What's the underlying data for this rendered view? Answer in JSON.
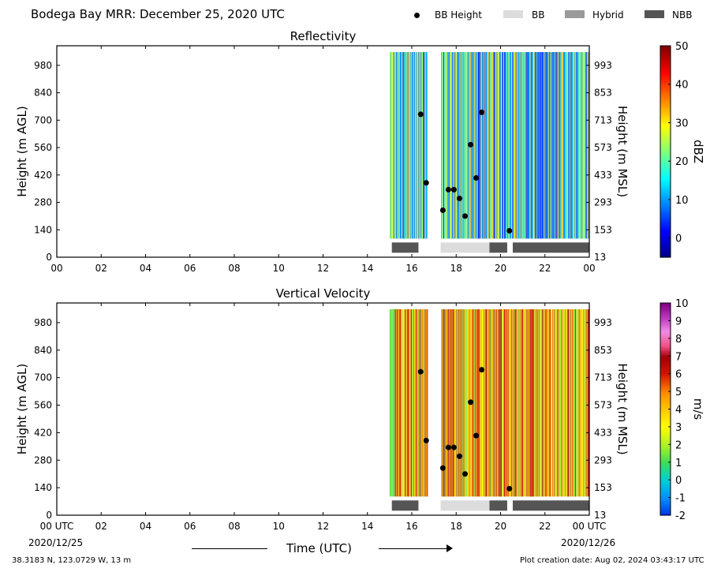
{
  "header": {
    "title": "Bodega Bay MRR:  December 25, 2020 UTC"
  },
  "legend": {
    "bb_height": "BB Height",
    "bb": "BB",
    "hybrid": "Hybrid",
    "nbb": "NBB",
    "colors": {
      "bb": "#dcdcdc",
      "hybrid": "#9a9a9a",
      "nbb": "#555555",
      "bb_height": "#000000"
    }
  },
  "footer": {
    "location": "38.3183 N, 123.0729 W, 13 m",
    "created": "Plot creation date: Aug 02, 2024 03:43:17 UTC",
    "date_start": "2020/12/25",
    "date_end": "2020/12/26",
    "xaxis_title": "Time (UTC)"
  },
  "chart_data": [
    {
      "type": "heatmap",
      "title": "Reflectivity",
      "ylabel": "Height (m AGL)",
      "ylabel_right": "Height (m MSL)",
      "colorbar_label": "dBZ",
      "colorbar_ticks": [
        "50",
        "40",
        "30",
        "20",
        "10",
        "0"
      ],
      "colorbar_range": [
        -5,
        50
      ],
      "x_ticks": [
        "00",
        "02",
        "04",
        "06",
        "08",
        "10",
        "12",
        "14",
        "16",
        "18",
        "20",
        "22",
        "00"
      ],
      "x_range_hours": [
        0,
        24
      ],
      "y_ticks": [
        "0",
        "140",
        "280",
        "420",
        "560",
        "700",
        "840",
        "980"
      ],
      "y_ticks_right": [
        "13",
        "153",
        "293",
        "433",
        "573",
        "713",
        "853",
        "993"
      ],
      "y_range_m_agl": [
        0,
        1080
      ],
      "data_start_hour": 15.0,
      "data_end_hour": 24.0,
      "data_gap_hours": [
        [
          16.7,
          17.3
        ]
      ],
      "bb_height_points": [
        {
          "hour": 16.4,
          "height_m_agl": 730
        },
        {
          "hour": 16.65,
          "height_m_agl": 380
        },
        {
          "hour": 17.4,
          "height_m_agl": 240
        },
        {
          "hour": 17.65,
          "height_m_agl": 345
        },
        {
          "hour": 17.9,
          "height_m_agl": 345
        },
        {
          "hour": 18.15,
          "height_m_agl": 300
        },
        {
          "hour": 18.4,
          "height_m_agl": 210
        },
        {
          "hour": 18.65,
          "height_m_agl": 575
        },
        {
          "hour": 18.9,
          "height_m_agl": 405
        },
        {
          "hour": 19.15,
          "height_m_agl": 740
        },
        {
          "hour": 20.4,
          "height_m_agl": 135
        }
      ],
      "classification_bars": [
        {
          "class": "NBB",
          "start_hour": 15.1,
          "end_hour": 16.3
        },
        {
          "class": "BB",
          "start_hour": 17.3,
          "end_hour": 19.5
        },
        {
          "class": "NBB",
          "start_hour": 19.5,
          "end_hour": 20.3
        },
        {
          "class": "NBB",
          "start_hour": 20.55,
          "end_hour": 24.0
        }
      ]
    },
    {
      "type": "heatmap",
      "title": "Vertical Velocity",
      "ylabel": "Height (m AGL)",
      "ylabel_right": "Height (m MSL)",
      "colorbar_label": "m/s",
      "colorbar_ticks": [
        "10",
        "9",
        "8",
        "7",
        "6",
        "5",
        "4",
        "3",
        "2",
        "1",
        "0",
        "-1",
        "-2"
      ],
      "colorbar_range": [
        -2,
        10
      ],
      "x_ticks": [
        "00 UTC",
        "02",
        "04",
        "06",
        "08",
        "10",
        "12",
        "14",
        "16",
        "18",
        "20",
        "22",
        "00 UTC"
      ],
      "x_range_hours": [
        0,
        24
      ],
      "y_ticks": [
        "0",
        "140",
        "280",
        "420",
        "560",
        "700",
        "840",
        "980"
      ],
      "y_ticks_right": [
        "13",
        "153",
        "293",
        "433",
        "573",
        "713",
        "853",
        "993"
      ],
      "y_range_m_agl": [
        0,
        1080
      ],
      "data_start_hour": 15.0,
      "data_end_hour": 24.0,
      "data_gap_hours": [
        [
          16.7,
          17.3
        ]
      ],
      "bb_height_points": [
        {
          "hour": 16.4,
          "height_m_agl": 730
        },
        {
          "hour": 16.65,
          "height_m_agl": 380
        },
        {
          "hour": 17.4,
          "height_m_agl": 240
        },
        {
          "hour": 17.65,
          "height_m_agl": 345
        },
        {
          "hour": 17.9,
          "height_m_agl": 345
        },
        {
          "hour": 18.15,
          "height_m_agl": 300
        },
        {
          "hour": 18.4,
          "height_m_agl": 210
        },
        {
          "hour": 18.65,
          "height_m_agl": 575
        },
        {
          "hour": 18.9,
          "height_m_agl": 405
        },
        {
          "hour": 19.15,
          "height_m_agl": 740
        },
        {
          "hour": 20.4,
          "height_m_agl": 135
        }
      ],
      "classification_bars": [
        {
          "class": "NBB",
          "start_hour": 15.1,
          "end_hour": 16.3
        },
        {
          "class": "BB",
          "start_hour": 17.3,
          "end_hour": 19.5
        },
        {
          "class": "NBB",
          "start_hour": 19.5,
          "end_hour": 20.3
        },
        {
          "class": "NBB",
          "start_hour": 20.55,
          "end_hour": 24.0
        }
      ]
    }
  ]
}
